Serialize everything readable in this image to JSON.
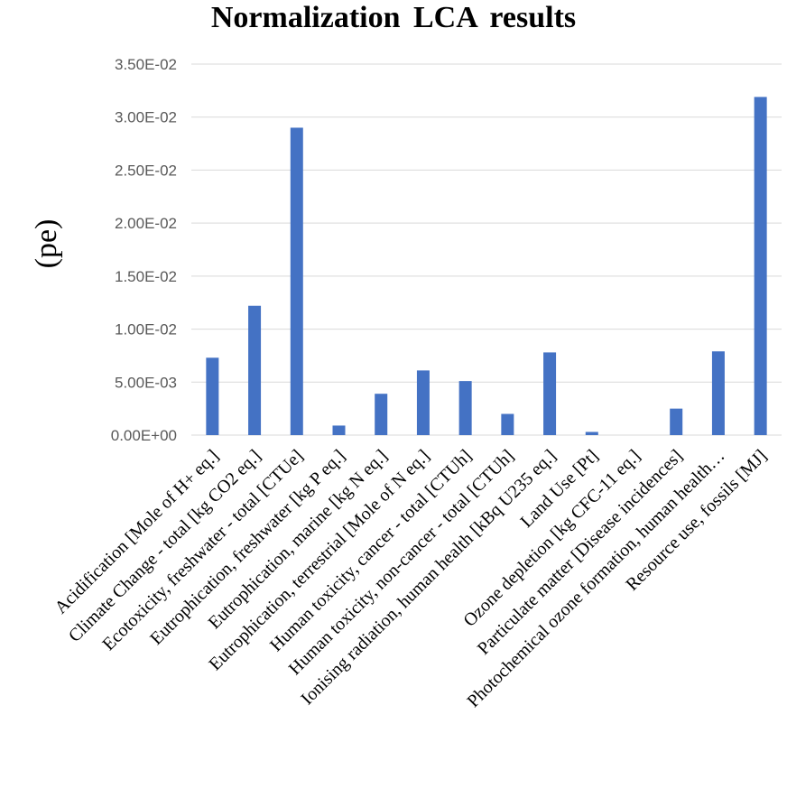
{
  "chart_data": {
    "type": "bar",
    "title": "Normalization  LCA results",
    "xlabel": "",
    "ylabel": "(pe)",
    "ylim": [
      0,
      0.035
    ],
    "yticks": [
      0,
      0.005,
      0.01,
      0.015,
      0.02,
      0.025,
      0.03,
      0.035
    ],
    "ytick_labels": [
      "0.00E+00",
      "5.00E-03",
      "1.00E-02",
      "1.50E-02",
      "2.00E-02",
      "2.50E-02",
      "3.00E-02",
      "3.50E-02"
    ],
    "grid": true,
    "legend": "none",
    "bar_color": "#4472C4",
    "categories": [
      "Acidification [Mole of H+ eq.]",
      "Climate Change - total [kg CO2 eq.]",
      "Ecotoxicity, freshwater - total [CTUe]",
      "Eutrophication, freshwater [kg P eq.]",
      "Eutrophication, marine [kg N eq.]",
      "Eutrophication, terrestrial [Mole of N eq.]",
      "Human toxicity, cancer - total [CTUh]",
      "Human toxicity, non-cancer - total [CTUh]",
      "Ionising radiation, human health [kBq U235 eq.]",
      "Land Use [Pt]",
      "Ozone depletion [kg CFC-11 eq.]",
      "Particulate matter [Disease incidences]",
      "Photochemical ozone formation, human health…",
      "Resource use, fossils [MJ]"
    ],
    "values": [
      0.0073,
      0.0122,
      0.029,
      0.0009,
      0.0039,
      0.0061,
      0.0051,
      0.002,
      0.0078,
      0.0003,
      0.0,
      0.0025,
      0.0079,
      0.0319
    ]
  }
}
